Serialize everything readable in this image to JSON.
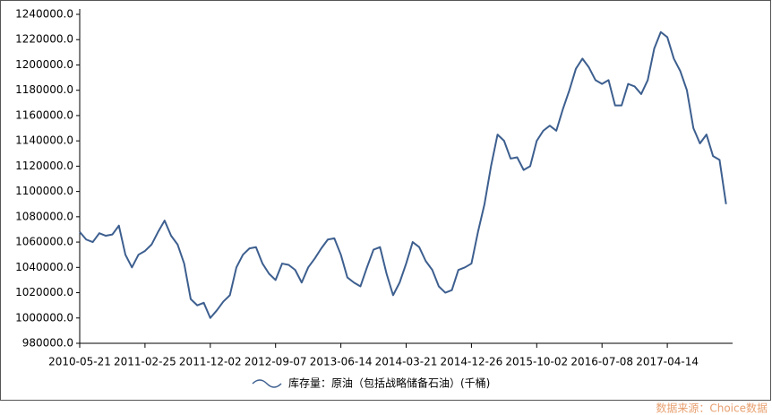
{
  "chart_data": {
    "type": "line",
    "legend_label": "库存量：原油（包括战略储备石油）(千桶)",
    "source": "数据来源：Choice数据",
    "color": "#3d5f8f",
    "x": [
      "2010-05-21",
      "2010-06-18",
      "2010-07-16",
      "2010-08-13",
      "2010-09-10",
      "2010-10-08",
      "2010-11-05",
      "2010-12-03",
      "2010-12-31",
      "2011-01-28",
      "2011-02-25",
      "2011-03-25",
      "2011-04-22",
      "2011-05-20",
      "2011-06-17",
      "2011-07-15",
      "2011-08-12",
      "2011-09-09",
      "2011-10-07",
      "2011-11-04",
      "2011-12-02",
      "2011-12-30",
      "2012-01-27",
      "2012-02-24",
      "2012-03-23",
      "2012-04-20",
      "2012-05-18",
      "2012-06-15",
      "2012-07-13",
      "2012-08-10",
      "2012-09-07",
      "2012-10-05",
      "2012-11-02",
      "2012-11-30",
      "2012-12-28",
      "2013-01-25",
      "2013-02-22",
      "2013-03-22",
      "2013-04-19",
      "2013-05-17",
      "2013-06-14",
      "2013-07-12",
      "2013-08-09",
      "2013-09-06",
      "2013-10-04",
      "2013-11-01",
      "2013-11-29",
      "2013-12-27",
      "2014-01-24",
      "2014-02-21",
      "2014-03-21",
      "2014-04-18",
      "2014-05-16",
      "2014-06-13",
      "2014-07-11",
      "2014-08-08",
      "2014-09-05",
      "2014-10-03",
      "2014-10-31",
      "2014-11-28",
      "2014-12-26",
      "2015-01-23",
      "2015-02-20",
      "2015-03-20",
      "2015-04-17",
      "2015-05-15",
      "2015-06-12",
      "2015-07-10",
      "2015-08-07",
      "2015-09-04",
      "2015-10-02",
      "2015-10-30",
      "2015-11-27",
      "2015-12-25",
      "2016-01-22",
      "2016-02-19",
      "2016-03-18",
      "2016-04-15",
      "2016-05-13",
      "2016-06-10",
      "2016-07-08",
      "2016-08-05",
      "2016-09-02",
      "2016-09-30",
      "2016-10-28",
      "2016-11-25",
      "2016-12-23",
      "2017-01-20",
      "2017-02-17",
      "2017-03-17",
      "2017-04-14",
      "2017-05-12",
      "2017-06-09",
      "2017-07-07",
      "2017-08-04",
      "2017-09-01",
      "2017-09-29",
      "2017-10-27",
      "2017-11-24",
      "2017-12-22"
    ],
    "values": [
      1068000,
      1062000,
      1060000,
      1067000,
      1065000,
      1066000,
      1073000,
      1050000,
      1040000,
      1050000,
      1053000,
      1058000,
      1068000,
      1077000,
      1065000,
      1058000,
      1043000,
      1015000,
      1010000,
      1012000,
      1000000,
      1006000,
      1013000,
      1018000,
      1040000,
      1050000,
      1055000,
      1056000,
      1043000,
      1035000,
      1030000,
      1043000,
      1042000,
      1038000,
      1028000,
      1040000,
      1047000,
      1055000,
      1062000,
      1063000,
      1050000,
      1032000,
      1028000,
      1025000,
      1040000,
      1054000,
      1056000,
      1035000,
      1018000,
      1028000,
      1043000,
      1060000,
      1056000,
      1045000,
      1038000,
      1025000,
      1020000,
      1022000,
      1038000,
      1040000,
      1043000,
      1068000,
      1090000,
      1120000,
      1145000,
      1140000,
      1126000,
      1127000,
      1117000,
      1120000,
      1140000,
      1148000,
      1152000,
      1148000,
      1165000,
      1180000,
      1197000,
      1205000,
      1198000,
      1188000,
      1185000,
      1188000,
      1168000,
      1168000,
      1185000,
      1183000,
      1177000,
      1188000,
      1213000,
      1226000,
      1222000,
      1205000,
      1195000,
      1180000,
      1150000,
      1138000,
      1145000,
      1128000,
      1125000,
      1090000
    ],
    "xlim": [
      "2010-05-21",
      "2018-01-19"
    ],
    "xticks": [
      "2010-05-21",
      "2011-02-25",
      "2011-12-02",
      "2012-09-07",
      "2013-06-14",
      "2014-03-21",
      "2014-12-26",
      "2015-10-02",
      "2016-07-08",
      "2017-04-14"
    ],
    "ylim": [
      980000,
      1240000
    ],
    "yticks": [
      {
        "value": 980000,
        "label": "980000.0"
      },
      {
        "value": 1000000,
        "label": "1000000.0"
      },
      {
        "value": 1020000,
        "label": "1020000.0"
      },
      {
        "value": 1040000,
        "label": "1040000.0"
      },
      {
        "value": 1060000,
        "label": "1060000.0"
      },
      {
        "value": 1080000,
        "label": "1080000.0"
      },
      {
        "value": 1100000,
        "label": "1100000.0"
      },
      {
        "value": 1120000,
        "label": "1120000.0"
      },
      {
        "value": 1140000,
        "label": "1140000.0"
      },
      {
        "value": 1160000,
        "label": "1160000.0"
      },
      {
        "value": 1180000,
        "label": "1180000.0"
      },
      {
        "value": 1200000,
        "label": "1200000.0"
      },
      {
        "value": 1220000,
        "label": "1220000.0"
      },
      {
        "value": 1240000,
        "label": "1240000.0"
      }
    ],
    "grid": false
  }
}
